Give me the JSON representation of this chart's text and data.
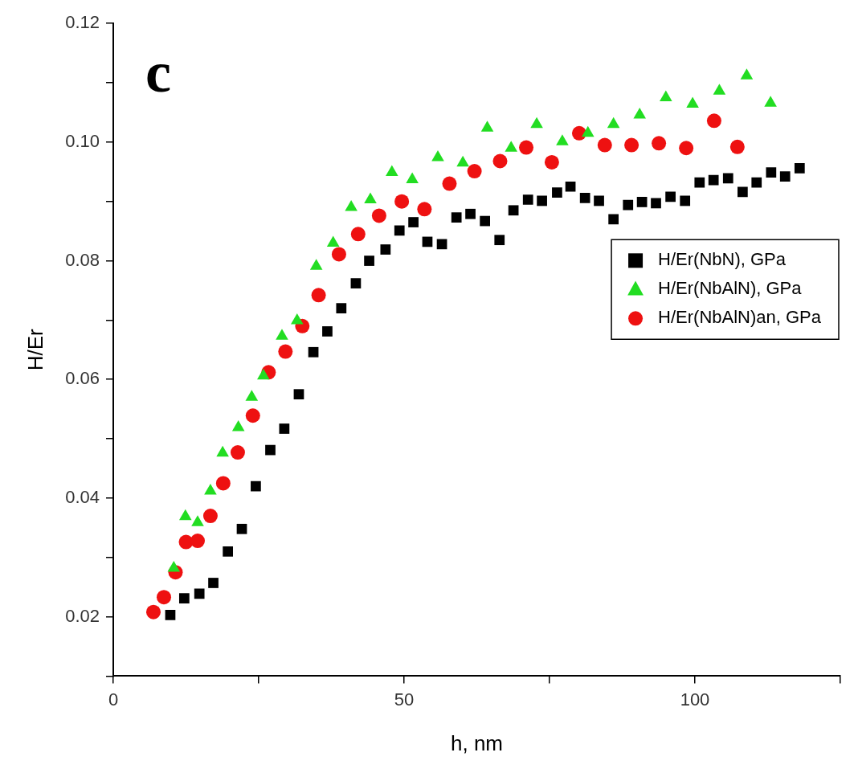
{
  "chart_data": {
    "type": "scatter",
    "xlabel": "h, nm",
    "ylabel": "H/Er",
    "annotations": [
      "c"
    ],
    "legend": "right",
    "grid": false,
    "xlim": [
      0,
      125
    ],
    "xticks": [
      0,
      {
        "value": 25,
        "label": null
      },
      50,
      {
        "value": 75,
        "label": null
      },
      100,
      {
        "value": 125,
        "label": null
      }
    ],
    "ylim": [
      0.01,
      0.12
    ],
    "yticks": [
      {
        "value": 0.01,
        "label": null
      },
      0.02,
      {
        "value": 0.03,
        "label": null
      },
      0.04,
      {
        "value": 0.05,
        "label": null
      },
      0.06,
      {
        "value": 0.07,
        "label": null
      },
      0.08,
      {
        "value": 0.09,
        "label": null
      },
      {
        "value": 0.1,
        "label": "0.10"
      },
      {
        "value": 0.11,
        "label": null
      },
      0.12
    ],
    "series": [
      {
        "name": "H/Er(NbN), GPa",
        "color": "#000000",
        "marker": "square",
        "x": [
          9.8,
          12.2,
          14.8,
          17.2,
          19.7,
          22.1,
          24.5,
          27.0,
          29.4,
          31.9,
          34.4,
          36.8,
          39.2,
          41.7,
          44.0,
          46.8,
          49.2,
          51.6,
          54.0,
          56.5,
          59.0,
          61.4,
          63.9,
          66.4,
          68.8,
          71.3,
          73.7,
          76.3,
          78.6,
          81.1,
          83.5,
          86.0,
          88.5,
          90.9,
          93.3,
          95.8,
          98.3,
          100.8,
          103.2,
          105.7,
          108.2,
          110.6,
          113.1,
          115.5,
          118.0
        ],
        "values": [
          0.0203,
          0.0231,
          0.0239,
          0.0257,
          0.031,
          0.0348,
          0.042,
          0.0481,
          0.0517,
          0.0575,
          0.0646,
          0.0681,
          0.072,
          0.0762,
          0.08,
          0.0819,
          0.0851,
          0.0865,
          0.0832,
          0.0828,
          0.0873,
          0.0879,
          0.0867,
          0.0835,
          0.0885,
          0.0903,
          0.0901,
          0.0915,
          0.0925,
          0.0906,
          0.0901,
          0.087,
          0.0894,
          0.0899,
          0.0897,
          0.0908,
          0.0901,
          0.0932,
          0.0936,
          0.0939,
          0.0916,
          0.0932,
          0.0949,
          0.0942,
          0.0956
        ]
      },
      {
        "name": "H/Er(NbAlN), GPa",
        "color": "#22dd22",
        "marker": "triangle",
        "x": [
          10.4,
          12.4,
          14.5,
          16.7,
          18.8,
          21.5,
          23.8,
          25.8,
          29.0,
          31.6,
          34.9,
          37.8,
          40.9,
          44.2,
          47.9,
          51.4,
          55.8,
          60.1,
          64.3,
          68.4,
          72.8,
          77.2,
          81.6,
          86.0,
          90.5,
          95.0,
          99.6,
          104.2,
          108.9,
          113.0
        ],
        "values": [
          0.0282,
          0.0369,
          0.0359,
          0.0412,
          0.0476,
          0.0519,
          0.057,
          0.0606,
          0.0673,
          0.0699,
          0.0791,
          0.083,
          0.089,
          0.0903,
          0.0949,
          0.0937,
          0.0974,
          0.0965,
          0.1024,
          0.099,
          0.103,
          0.1001,
          0.1015,
          0.103,
          0.1046,
          0.1075,
          0.1064,
          0.1086,
          0.1112,
          0.1066
        ]
      },
      {
        "name": "H/Er(NbAlN)an, GPa",
        "color": "#ee1111",
        "marker": "circle",
        "x": [
          6.9,
          8.7,
          10.7,
          12.5,
          14.5,
          16.7,
          18.9,
          21.4,
          24.0,
          26.7,
          29.6,
          32.5,
          35.3,
          38.8,
          42.1,
          45.7,
          49.6,
          53.5,
          57.8,
          62.1,
          66.5,
          71.0,
          75.4,
          80.1,
          84.5,
          89.1,
          93.8,
          98.5,
          103.3,
          107.3
        ],
        "values": [
          0.0208,
          0.0233,
          0.0275,
          0.0326,
          0.0328,
          0.037,
          0.0425,
          0.0477,
          0.0539,
          0.0612,
          0.0647,
          0.069,
          0.0742,
          0.0811,
          0.0845,
          0.0876,
          0.09,
          0.0887,
          0.093,
          0.0951,
          0.0968,
          0.0991,
          0.0966,
          0.1015,
          0.0995,
          0.0995,
          0.0998,
          0.099,
          0.1036,
          0.0992
        ]
      }
    ]
  }
}
